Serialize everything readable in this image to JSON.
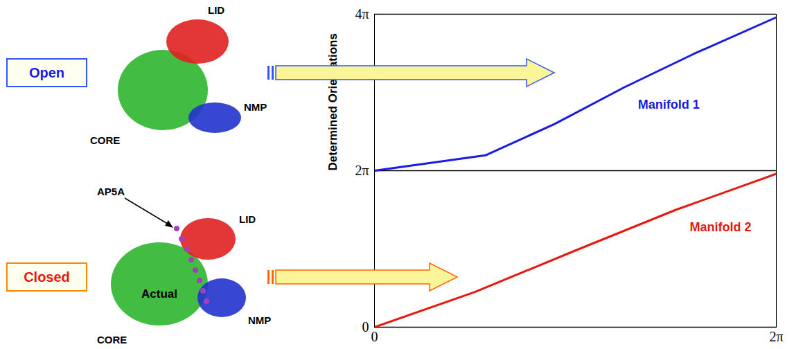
{
  "chart_data": {
    "type": "line",
    "ylabel": "Determined Orientations",
    "xlim": [
      0,
      6.2832
    ],
    "xticks": [
      0,
      {
        "value": 6.2832,
        "label": "2π"
      }
    ],
    "ylim": [
      0,
      12.5664
    ],
    "yticks": [
      0,
      {
        "value": 6.2832,
        "label": "2π"
      },
      {
        "value": 12.5664,
        "label": "4π"
      }
    ],
    "grid": true,
    "series": [
      {
        "name": "Manifold 1",
        "color": "#1a1ae6",
        "x": [
          0,
          1.734,
          2.815,
          3.902,
          4.983,
          6.283
        ],
        "values": [
          6.283,
          6.899,
          8.156,
          9.626,
          10.961,
          12.441
        ]
      },
      {
        "name": "Manifold 2",
        "color": "#e6190f",
        "x": [
          0,
          1.571,
          3.142,
          4.712,
          6.283
        ],
        "values": [
          0,
          1.414,
          3.079,
          4.712,
          6.158
        ]
      }
    ]
  },
  "structures": [
    {
      "state": "Open",
      "domains": [
        "LID",
        "NMP",
        "CORE"
      ]
    },
    {
      "state": "Closed",
      "domains": [
        "LID",
        "NMP",
        "CORE"
      ],
      "ligand": "AP5A",
      "label": "Actual"
    }
  ]
}
